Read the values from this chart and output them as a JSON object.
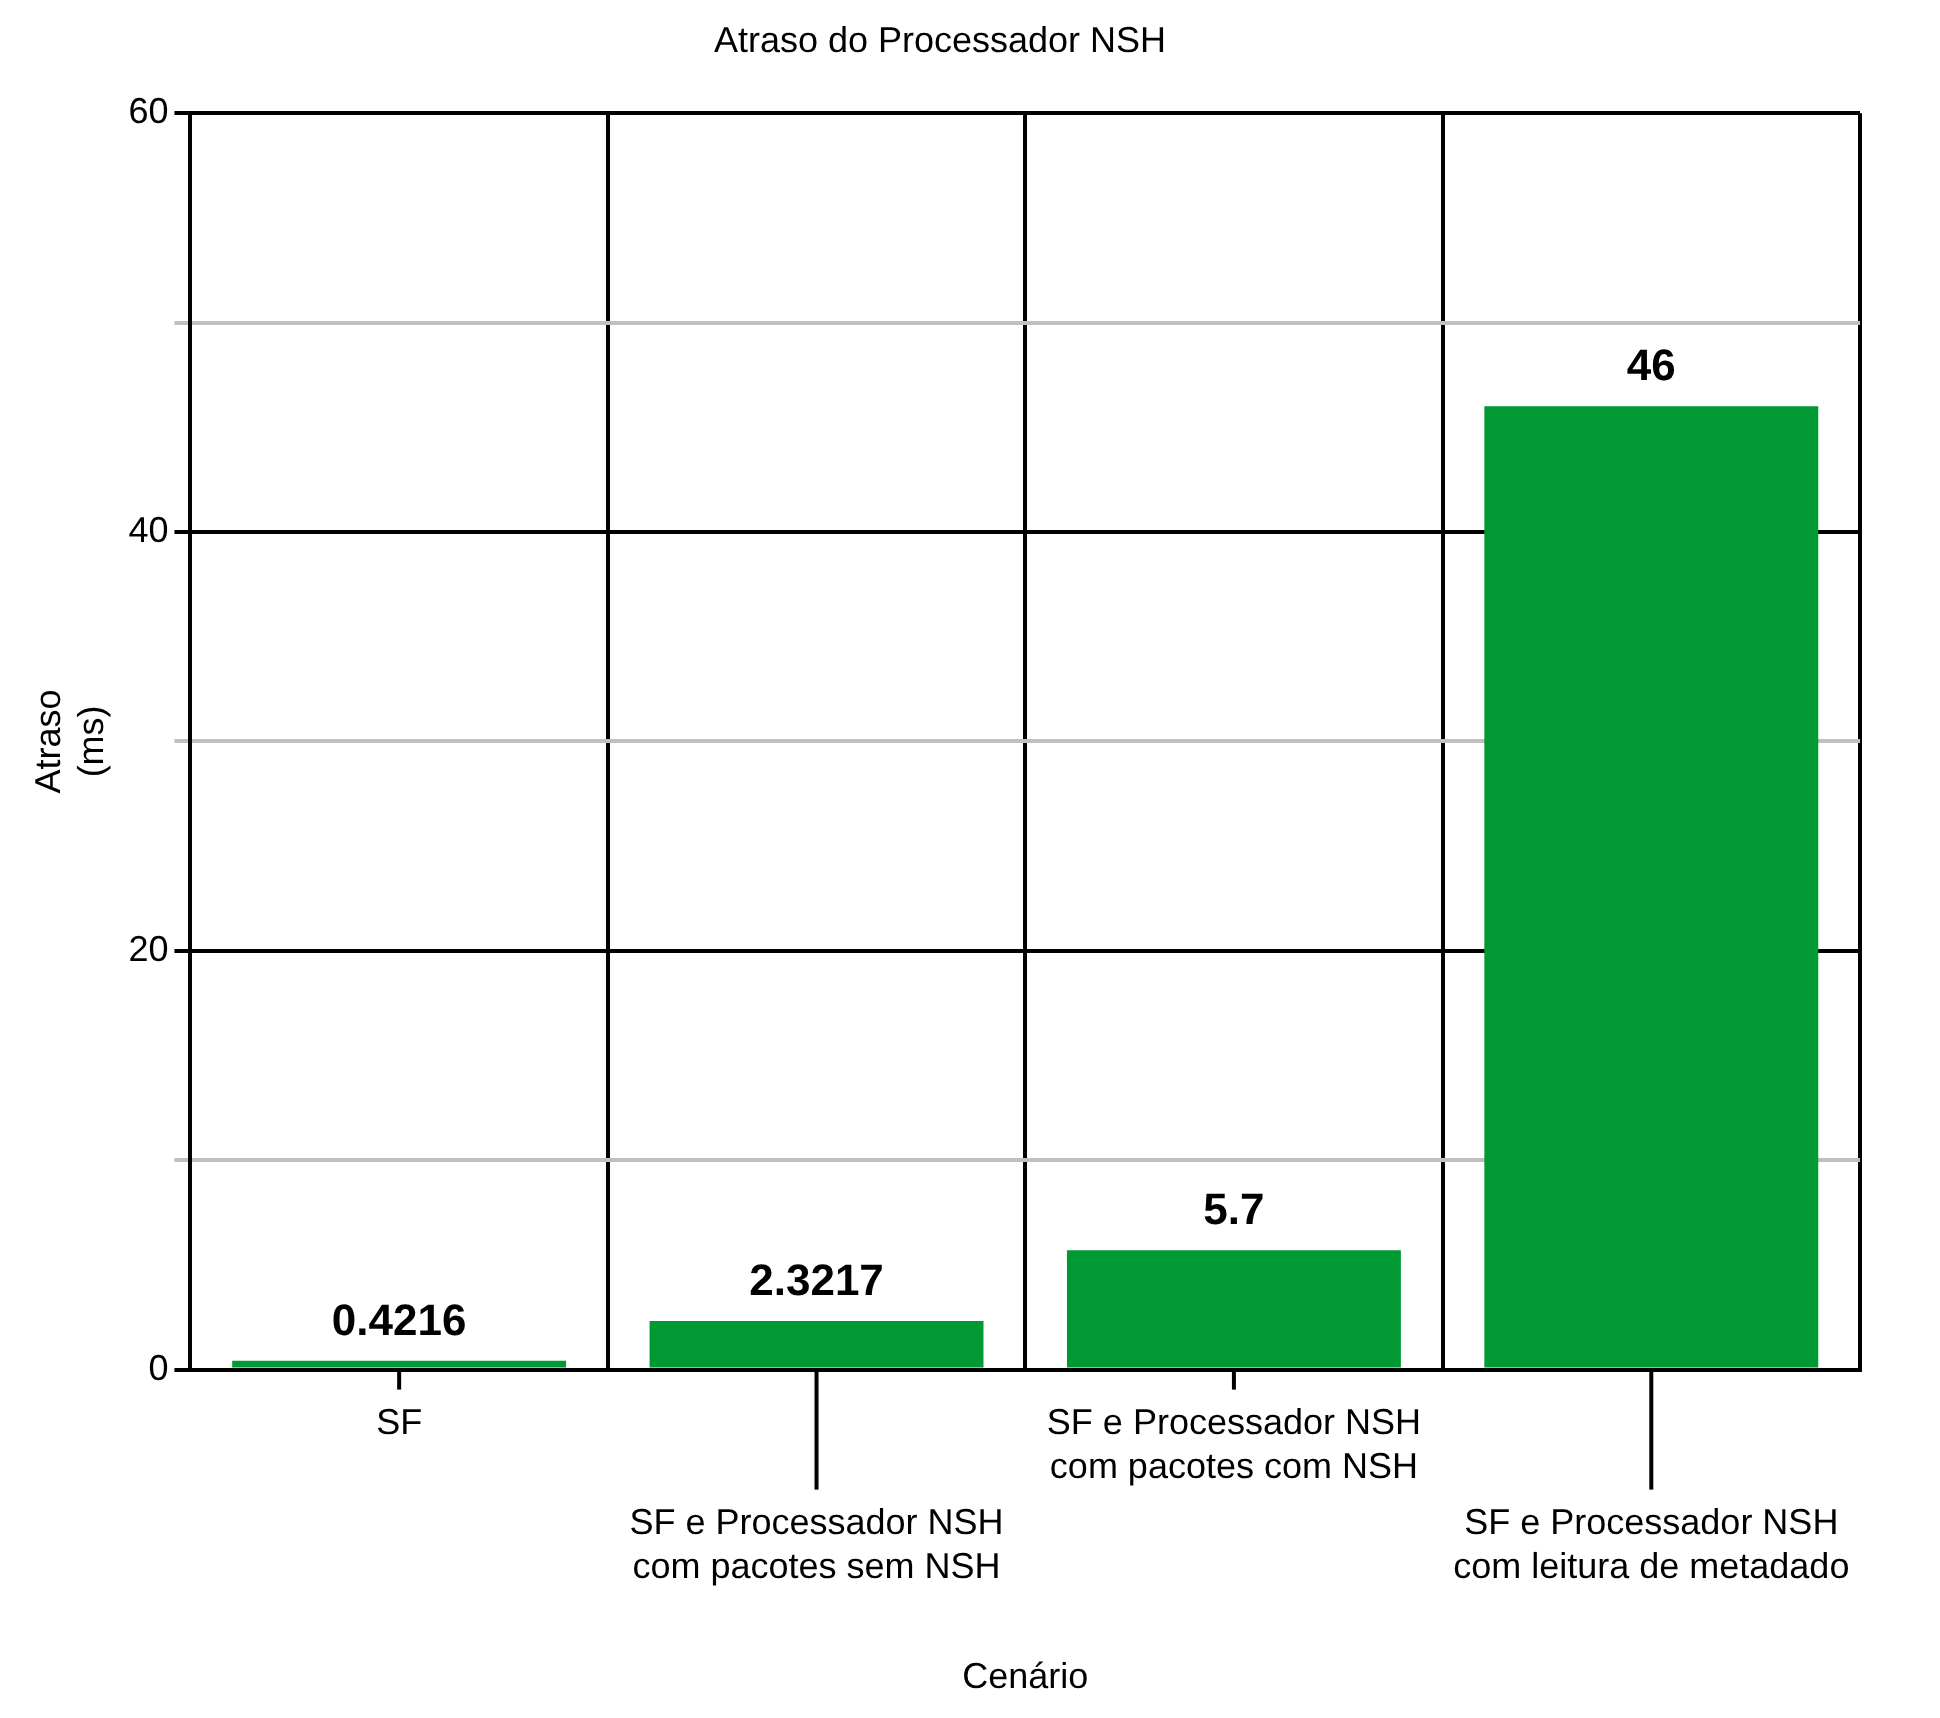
{
  "chart_data": {
    "type": "bar",
    "title": "Atraso do Processador NSH",
    "xlabel": "Cenário",
    "ylabel": "Atraso\n(ms)",
    "categories": [
      "SF",
      "SF e Processador NSH\ncom pacotes sem NSH",
      "SF e Processador NSH\ncom pacotes com NSH",
      "SF e Processador NSH\ncom leitura de metadado"
    ],
    "values": [
      0.4216,
      2.3217,
      5.7,
      46
    ],
    "color": "#009933",
    "data_labels": true,
    "ylim": [
      0,
      60
    ],
    "yticks": [
      0,
      {
        "value": 10,
        "label": null
      },
      20,
      {
        "value": 30,
        "label": null
      },
      40,
      {
        "value": 50,
        "label": null
      },
      60
    ],
    "grid": true,
    "legend": false
  }
}
